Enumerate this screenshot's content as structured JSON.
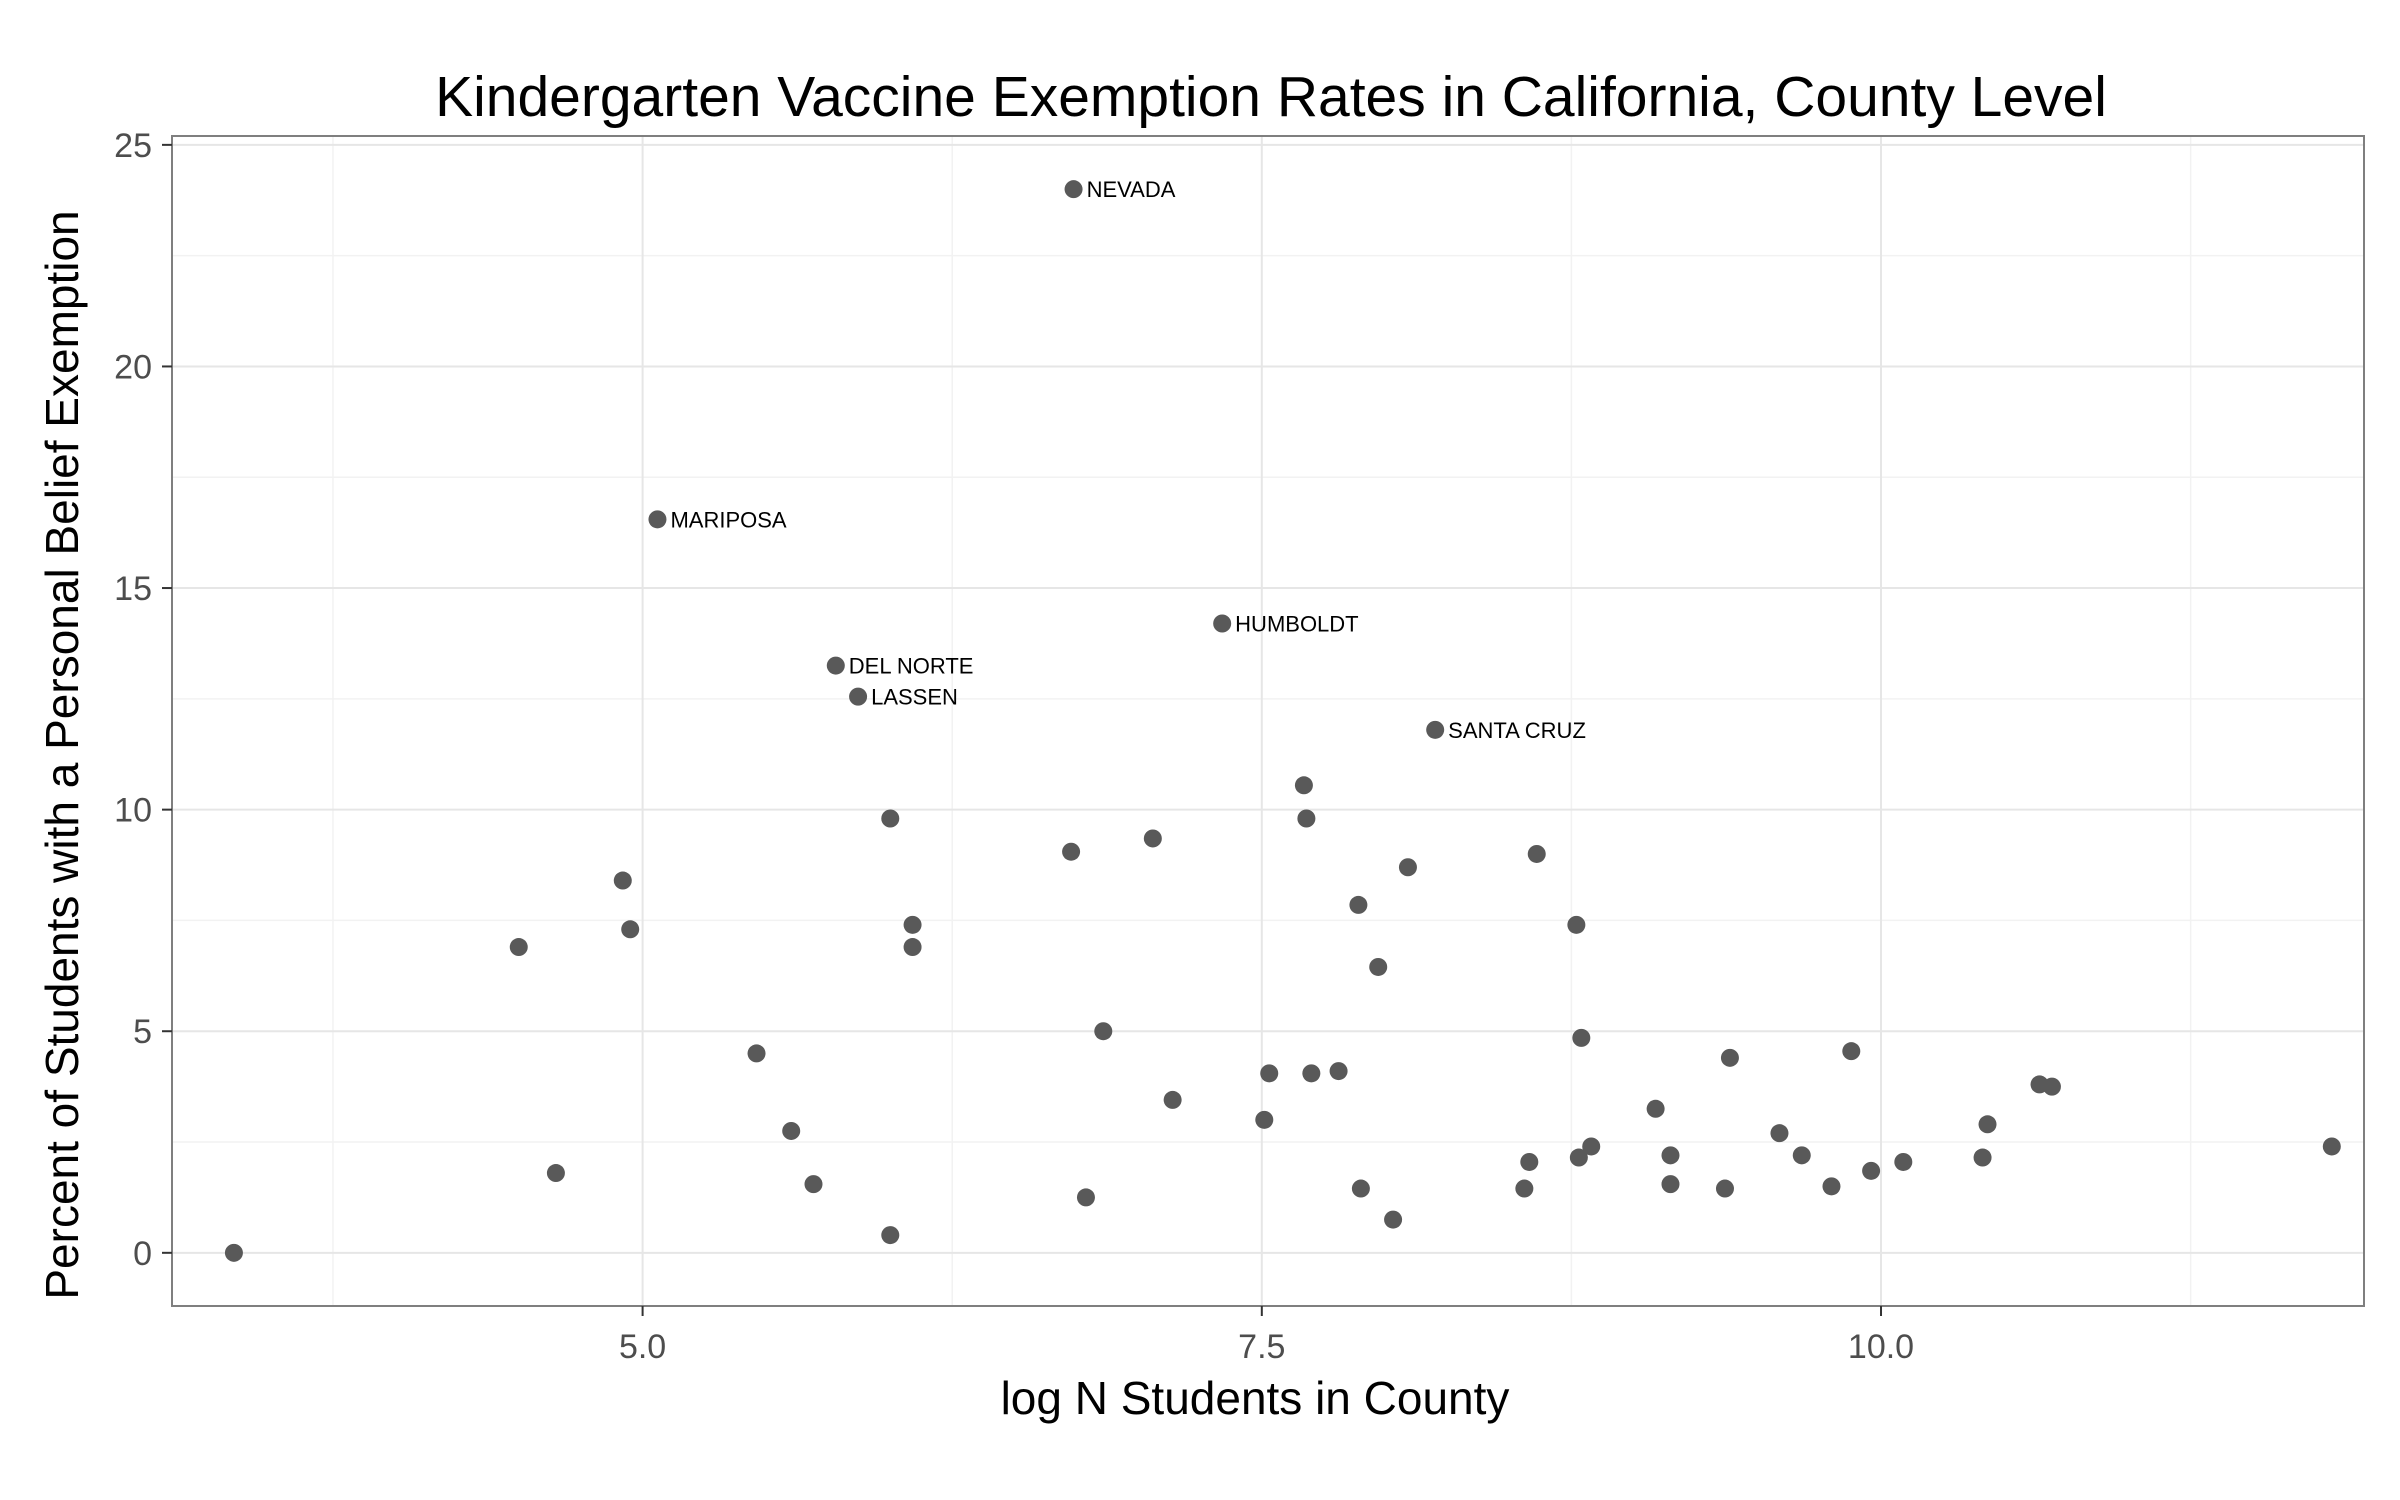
{
  "chart_data": {
    "type": "scatter",
    "title": "Kindergarten Vaccine Exemption Rates in California, County Level",
    "xlabel": "log N Students in County",
    "ylabel": "Percent of Students with a Personal Belief Exemption",
    "xlim": [
      3.1,
      11.95
    ],
    "ylim": [
      -1.2,
      25.2
    ],
    "x_ticks": [
      5.0,
      7.5,
      10.0
    ],
    "x_tick_labels": [
      "5.0",
      "7.5",
      "10.0"
    ],
    "y_ticks": [
      0,
      5,
      10,
      15,
      20,
      25
    ],
    "y_tick_labels": [
      "0",
      "5",
      "10",
      "15",
      "20",
      "25"
    ],
    "grid": true,
    "point_color": "#595959",
    "points": [
      {
        "x": 3.35,
        "y": 0.0,
        "label": ""
      },
      {
        "x": 4.5,
        "y": 6.9,
        "label": ""
      },
      {
        "x": 4.65,
        "y": 1.8,
        "label": ""
      },
      {
        "x": 4.92,
        "y": 8.4,
        "label": ""
      },
      {
        "x": 4.95,
        "y": 7.3,
        "label": ""
      },
      {
        "x": 5.06,
        "y": 16.55,
        "label": "MARIPOSA"
      },
      {
        "x": 5.46,
        "y": 4.5,
        "label": ""
      },
      {
        "x": 5.6,
        "y": 2.75,
        "label": ""
      },
      {
        "x": 5.69,
        "y": 1.55,
        "label": ""
      },
      {
        "x": 5.78,
        "y": 13.25,
        "label": "DEL NORTE"
      },
      {
        "x": 5.87,
        "y": 12.55,
        "label": "LASSEN"
      },
      {
        "x": 6.0,
        "y": 9.8,
        "label": ""
      },
      {
        "x": 6.0,
        "y": 0.4,
        "label": ""
      },
      {
        "x": 6.09,
        "y": 7.4,
        "label": ""
      },
      {
        "x": 6.09,
        "y": 6.9,
        "label": ""
      },
      {
        "x": 6.73,
        "y": 9.05,
        "label": ""
      },
      {
        "x": 6.74,
        "y": 24.0,
        "label": "NEVADA"
      },
      {
        "x": 6.79,
        "y": 1.25,
        "label": ""
      },
      {
        "x": 6.86,
        "y": 5.0,
        "label": ""
      },
      {
        "x": 7.06,
        "y": 9.35,
        "label": ""
      },
      {
        "x": 7.14,
        "y": 3.45,
        "label": ""
      },
      {
        "x": 7.34,
        "y": 14.2,
        "label": "HUMBOLDT"
      },
      {
        "x": 7.51,
        "y": 3.0,
        "label": ""
      },
      {
        "x": 7.53,
        "y": 4.05,
        "label": ""
      },
      {
        "x": 7.67,
        "y": 10.55,
        "label": ""
      },
      {
        "x": 7.68,
        "y": 9.8,
        "label": ""
      },
      {
        "x": 7.7,
        "y": 4.05,
        "label": ""
      },
      {
        "x": 7.81,
        "y": 4.1,
        "label": ""
      },
      {
        "x": 7.89,
        "y": 7.85,
        "label": ""
      },
      {
        "x": 7.9,
        "y": 1.45,
        "label": ""
      },
      {
        "x": 7.97,
        "y": 6.45,
        "label": ""
      },
      {
        "x": 8.03,
        "y": 0.75,
        "label": ""
      },
      {
        "x": 8.09,
        "y": 8.7,
        "label": ""
      },
      {
        "x": 8.2,
        "y": 11.8,
        "label": "SANTA CRUZ"
      },
      {
        "x": 8.56,
        "y": 1.45,
        "label": ""
      },
      {
        "x": 8.58,
        "y": 2.05,
        "label": ""
      },
      {
        "x": 8.61,
        "y": 9.0,
        "label": ""
      },
      {
        "x": 8.77,
        "y": 7.4,
        "label": ""
      },
      {
        "x": 8.78,
        "y": 2.15,
        "label": ""
      },
      {
        "x": 8.79,
        "y": 4.85,
        "label": ""
      },
      {
        "x": 8.83,
        "y": 2.4,
        "label": ""
      },
      {
        "x": 9.09,
        "y": 3.25,
        "label": ""
      },
      {
        "x": 9.15,
        "y": 2.2,
        "label": ""
      },
      {
        "x": 9.15,
        "y": 1.55,
        "label": ""
      },
      {
        "x": 9.37,
        "y": 1.45,
        "label": ""
      },
      {
        "x": 9.39,
        "y": 4.4,
        "label": ""
      },
      {
        "x": 9.59,
        "y": 2.7,
        "label": ""
      },
      {
        "x": 9.68,
        "y": 2.2,
        "label": ""
      },
      {
        "x": 9.8,
        "y": 1.5,
        "label": ""
      },
      {
        "x": 9.88,
        "y": 4.55,
        "label": ""
      },
      {
        "x": 9.96,
        "y": 1.85,
        "label": ""
      },
      {
        "x": 10.09,
        "y": 2.05,
        "label": ""
      },
      {
        "x": 10.41,
        "y": 2.15,
        "label": ""
      },
      {
        "x": 10.43,
        "y": 2.9,
        "label": ""
      },
      {
        "x": 10.64,
        "y": 3.8,
        "label": ""
      },
      {
        "x": 10.69,
        "y": 3.75,
        "label": ""
      },
      {
        "x": 11.82,
        "y": 2.4,
        "label": ""
      }
    ]
  }
}
